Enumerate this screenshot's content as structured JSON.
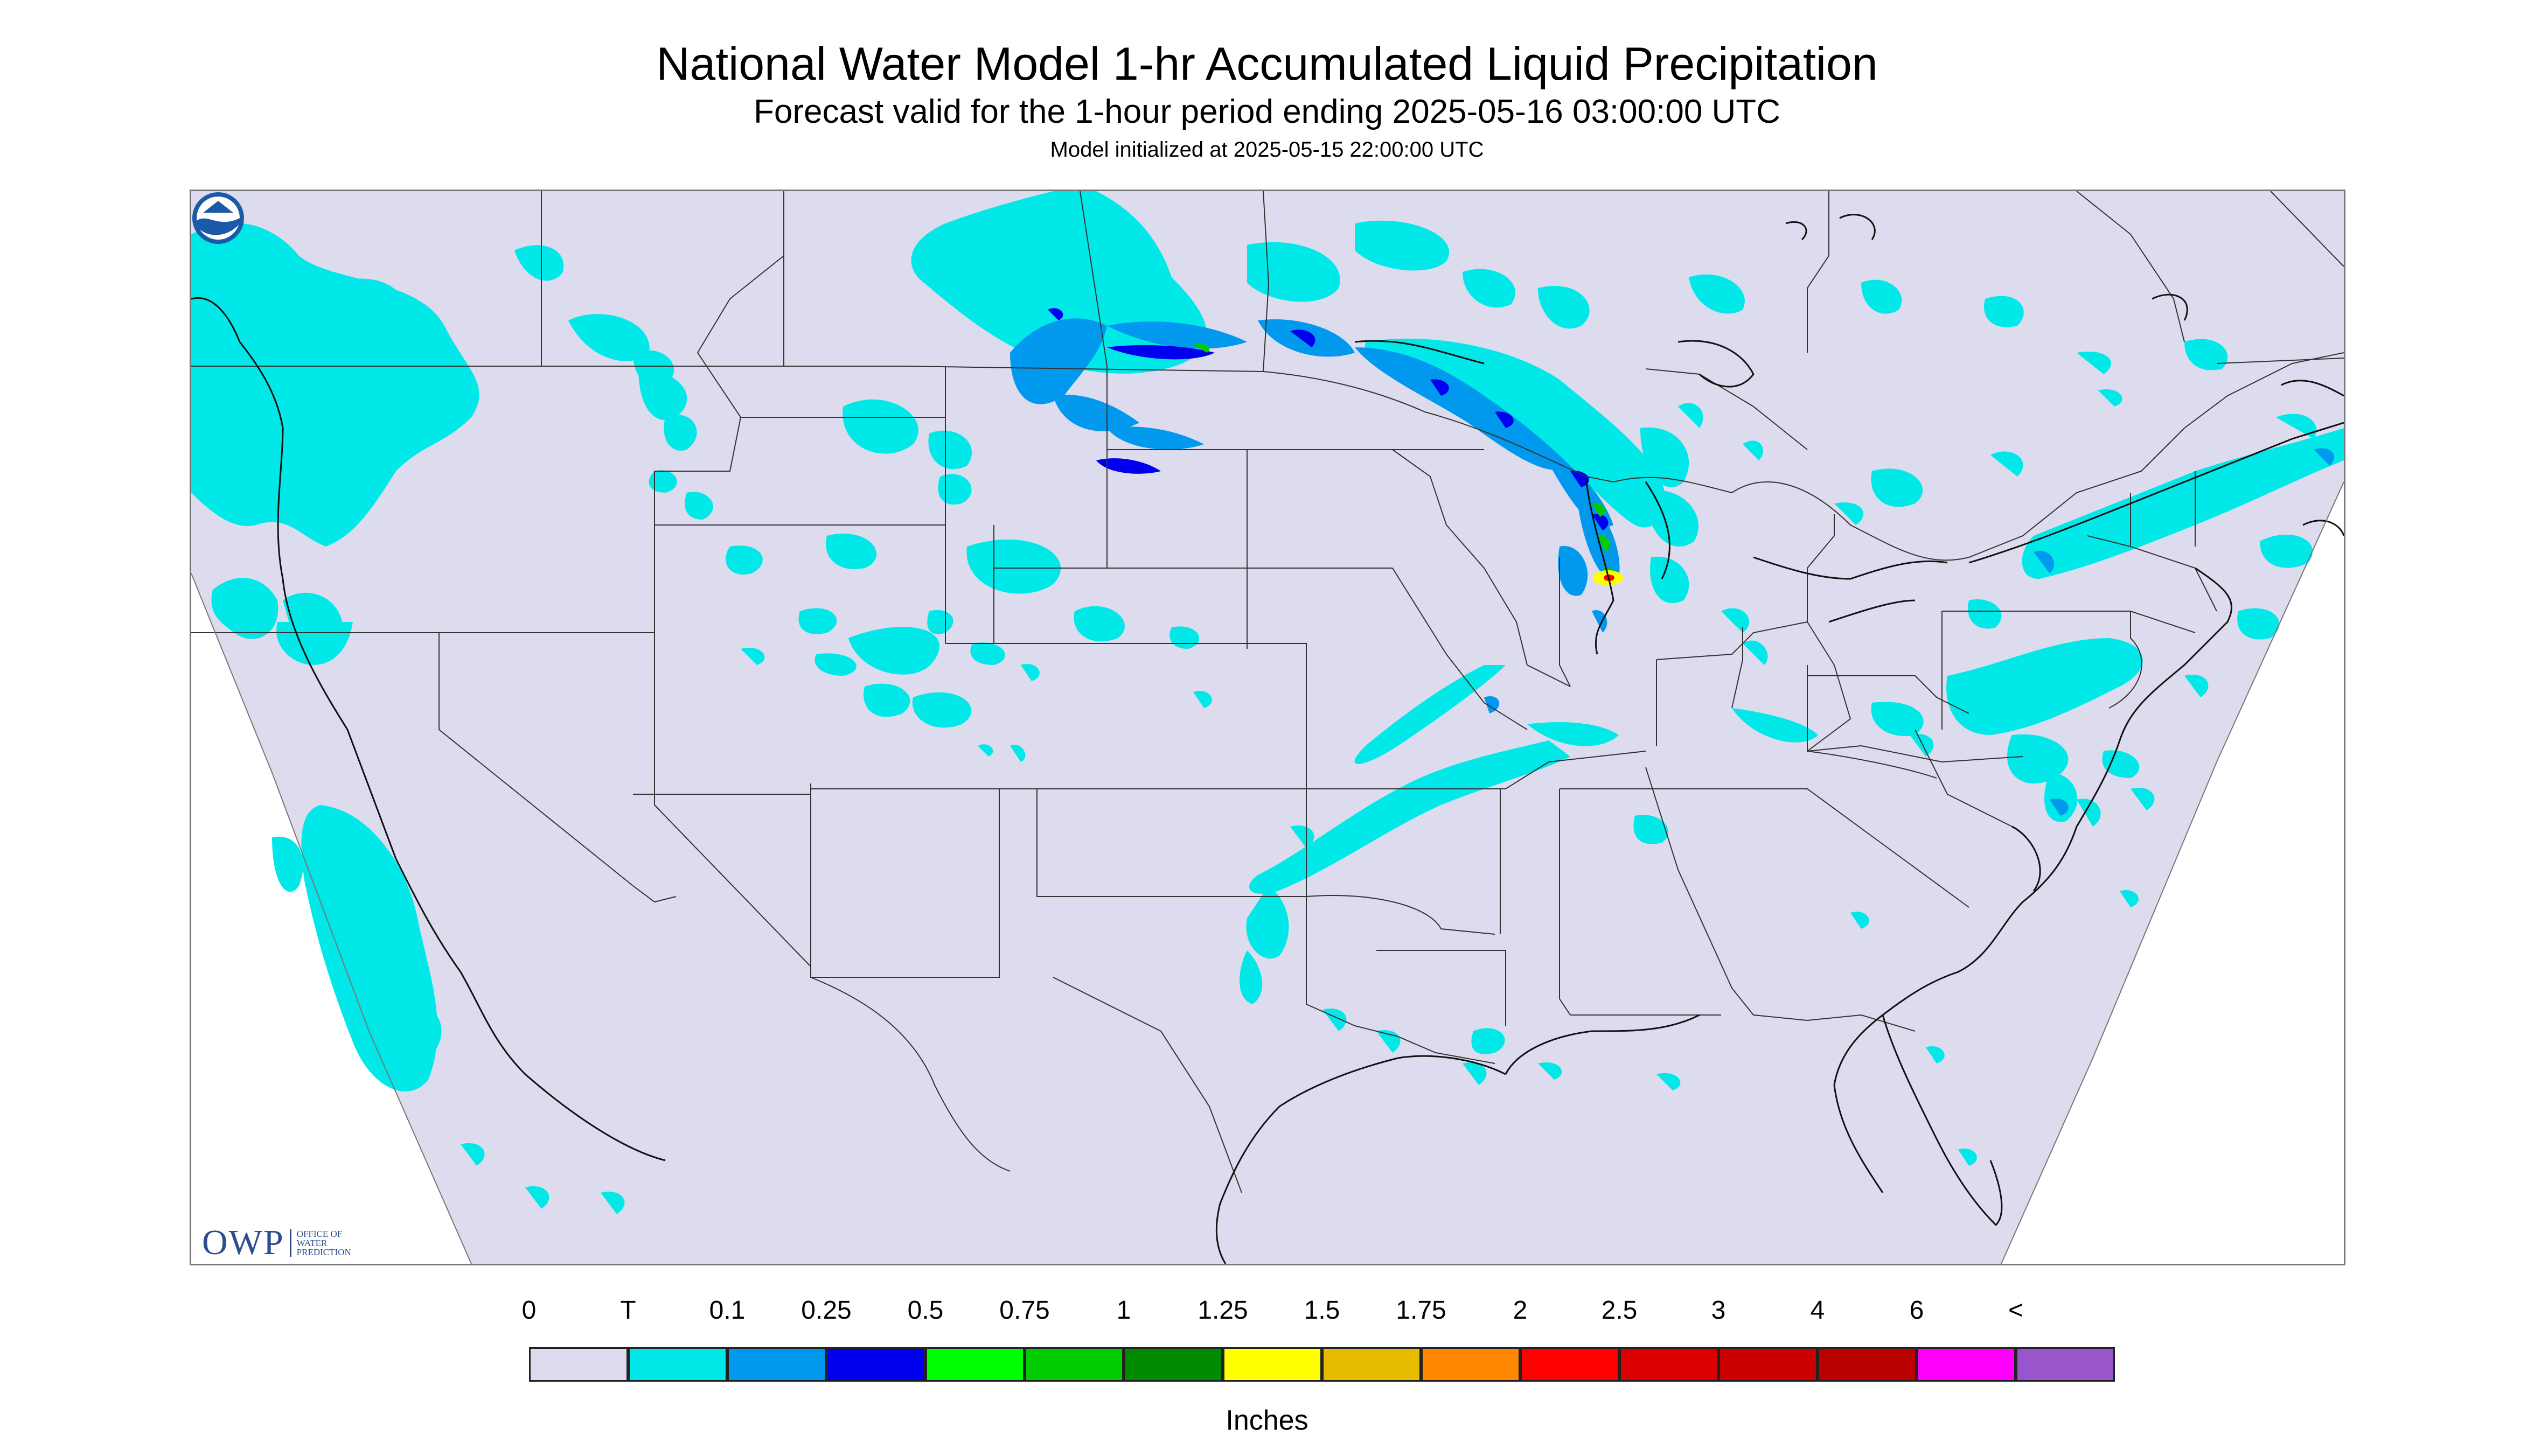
{
  "title": "National Water Model 1-hr Accumulated Liquid Precipitation",
  "subtitle": "Forecast valid for the 1-hour period ending 2025-05-16 03:00:00 UTC",
  "init_line": "Model initialized at 2025-05-15 22:00:00 UTC",
  "colors": {
    "background": "#dcdcee",
    "trace": "#00e8e8",
    "blue_light": "#0099ee",
    "blue_dark": "#0000ee",
    "green": "#00cc00",
    "yellow": "#ffff00",
    "red": "#ff0000",
    "boundary": "#333333"
  },
  "logos": {
    "owp": {
      "name": "OWP",
      "subtitle": "OFFICE OF WATER PREDICTION"
    },
    "noaa": {
      "name": "noaa-logo-icon"
    }
  },
  "legend": {
    "labels": [
      "0",
      "T",
      "0.1",
      "0.25",
      "0.5",
      "0.75",
      "1",
      "1.25",
      "1.5",
      "1.75",
      "2",
      "2.5",
      "3",
      "4",
      "6",
      "<"
    ],
    "colors": [
      "#dcdcee",
      "#00e8e8",
      "#0099ee",
      "#0000ee",
      "#00ff00",
      "#00cc00",
      "#008c00",
      "#ffff00",
      "#e6bb00",
      "#ff8800",
      "#ff0000",
      "#dd0000",
      "#cc0000",
      "#bb0000",
      "#ff00ff",
      "#9955cc"
    ],
    "units": "Inches"
  }
}
